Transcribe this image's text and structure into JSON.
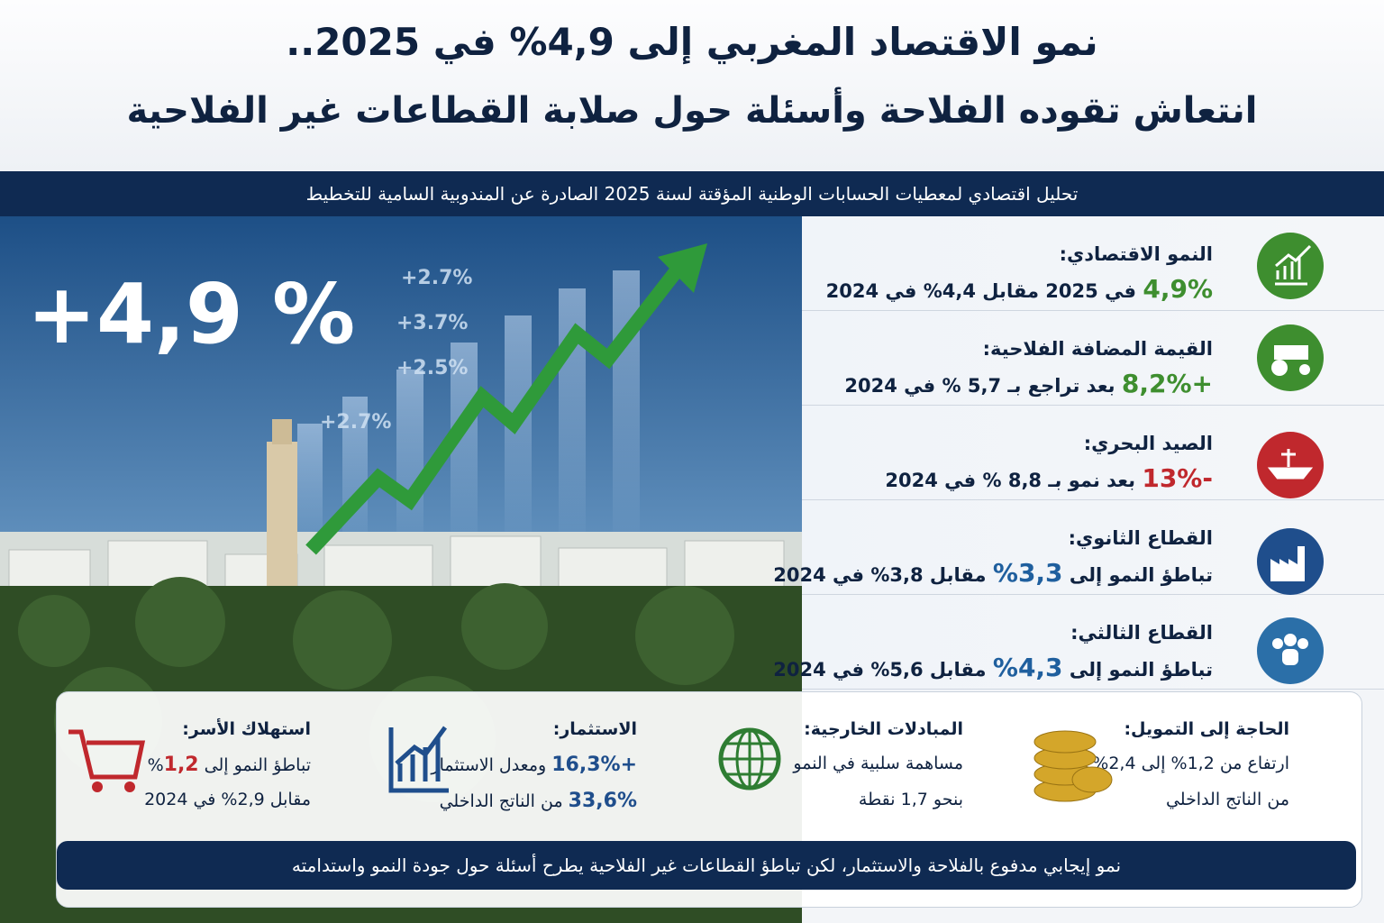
{
  "header": {
    "title_line1": "نمو الاقتصاد المغربي إلى 4,9% في 2025..",
    "title_line2": "انتعاش تقوده الفلاحة وأسئلة حول صلابة القطاعات غير الفلاحية",
    "subtitle": "تحليل اقتصادي لمعطيات الحسابات الوطنية المؤقتة لسنة 2025 الصادرة عن المندوبية السامية للتخطيط"
  },
  "hero": {
    "headline": "+4,9 %",
    "chart_labels": [
      "+2.7%",
      "+3.7%",
      "+2.5%",
      "+2.7%"
    ]
  },
  "indicators": [
    {
      "label": "النمو الاقتصادي:",
      "value": "4,9%",
      "rest": "في 2025  مقابل 4,4% في 2024",
      "color": "#3e8e2f"
    },
    {
      "label": "القيمة المضافة الفلاحية:",
      "value": "+8,2%",
      "rest": "بعد تراجع بـ 5,7 % في 2024",
      "color": "#3e8e2f"
    },
    {
      "label": "الصيد البحري:",
      "value": "-13%",
      "rest": "بعد نمو بـ 8,8 % في 2024",
      "color": "#c0282d"
    },
    {
      "label": "القطاع الثانوي:",
      "lead": "تباطؤ النمو إلى",
      "value": "3,3%",
      "rest": "مقابل 3,8% في 2024",
      "color": "#1f5f9e"
    },
    {
      "label": "القطاع الثالثي:",
      "lead": "تباطؤ النمو إلى",
      "value": "4,3%",
      "rest": "مقابل 5,6% في 2024",
      "color": "#1f5f9e"
    }
  ],
  "cards": [
    {
      "title": "الحاجة إلى التمويل:",
      "lines": [
        [
          {
            "text": "ارتفاع من 1,2% إلى 2,4%"
          }
        ],
        [
          {
            "text": "من الناتج الداخلي"
          }
        ]
      ]
    },
    {
      "title": "المبادلات الخارجية:",
      "lines": [
        [
          {
            "text": "مساهمة سلبية في النمو"
          }
        ],
        [
          {
            "text": "بنحو 1,7 نقطة"
          }
        ]
      ]
    },
    {
      "title": "الاستثمار:",
      "lines": [
        [
          {
            "text": "+16,3%",
            "accent": "#1f4e8c"
          },
          {
            "text": " ومعدل الاستثمار"
          }
        ],
        [
          {
            "text": "33,6%",
            "accent": "#1f4e8c"
          },
          {
            "text": " من الناتج الداخلي"
          }
        ]
      ]
    },
    {
      "title": "استهلاك الأسر:",
      "lines": [
        [
          {
            "text": "تباطؤ النمو إلى "
          },
          {
            "text": "1,2",
            "accent": "#c0282d"
          },
          {
            "text": "%"
          }
        ],
        [
          {
            "text": "مقابل 2,9% في 2024"
          }
        ]
      ]
    }
  ],
  "footer": {
    "text": "نمو إيجابي مدفوع بالفلاحة والاستثمار، لكن تباطؤ القطاعات غير الفلاحية يطرح أسئلة حول جودة النمو واستدامته"
  }
}
